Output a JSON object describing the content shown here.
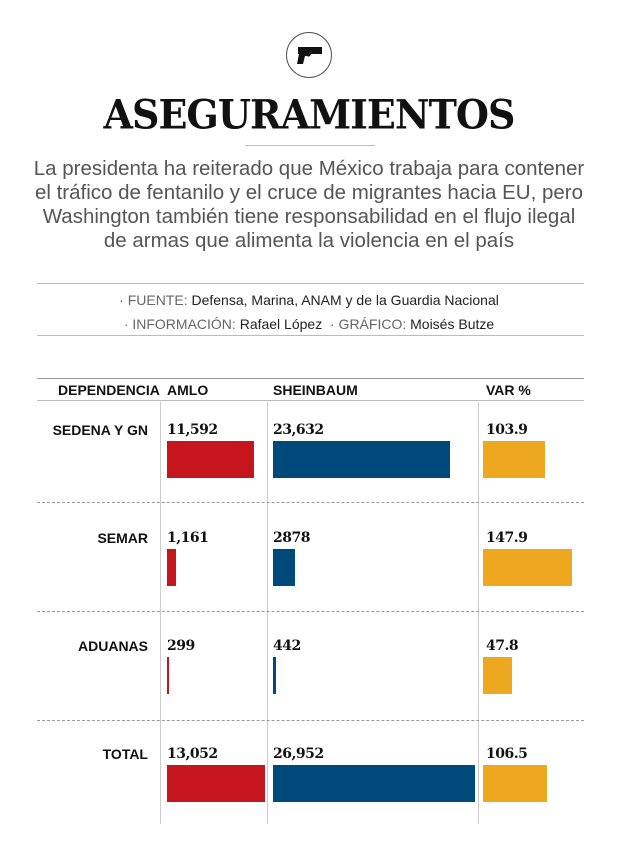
{
  "header": {
    "icon": "pistol-icon",
    "title": "ASEGURAMIENTOS",
    "intro": "La presidenta ha reiterado que México trabaja para contener el tráfico de fentanilo y el cruce de migrantes hacia EU, pero Washington también tiene responsabilidad en el flujo ilegal de armas que alimenta la violencia en el país"
  },
  "credits": {
    "source_label": "· FUENTE:",
    "source": "Defensa, Marina, ANAM y de la Guardia Nacional",
    "info_label": "· INFORMACIÓN:",
    "info": "Rafael López",
    "graphic_label": "· GRÁFICO:",
    "graphic": "Moisés Butze"
  },
  "chart_data": {
    "type": "table",
    "columns": [
      "DEPENDENCIA",
      "AMLO",
      "SHEINBAUM",
      "VAR %"
    ],
    "rows": [
      {
        "dependencia": "SEDENA Y GN",
        "amlo": 11592,
        "amlo_label": "11,592",
        "sheinbaum": 23632,
        "sheinbaum_label": "23,632",
        "var": 103.9,
        "var_label": "103.9"
      },
      {
        "dependencia": "SEMAR",
        "amlo": 1161,
        "amlo_label": "1,161",
        "sheinbaum": 2878,
        "sheinbaum_label": "2878",
        "var": 147.9,
        "var_label": "147.9"
      },
      {
        "dependencia": "ADUANAS",
        "amlo": 299,
        "amlo_label": "299",
        "sheinbaum": 442,
        "sheinbaum_label": "442",
        "var": 47.8,
        "var_label": "47.8"
      },
      {
        "dependencia": "TOTAL",
        "amlo": 13052,
        "amlo_label": "13,052",
        "sheinbaum": 26952,
        "sheinbaum_label": "26,952",
        "var": 106.5,
        "var_label": "106.5"
      }
    ],
    "colors": {
      "amlo": "#c4161c",
      "sheinbaum": "#00497b",
      "var": "#eea820"
    }
  }
}
